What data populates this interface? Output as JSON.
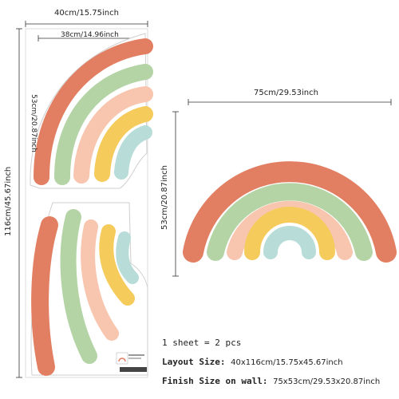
{
  "sheet": {
    "width_label": "40cm/15.75inch",
    "inner_width_label": "38cm/14.96inch",
    "height_label": "116cm/45.67inch",
    "inner_height_label": "53cm/20.87inch"
  },
  "finished": {
    "width_label": "75cm/29.53inch",
    "height_label": "53cm/20.87inch"
  },
  "info": {
    "line1": "1 sheet = 2 pcs",
    "layout_label": "Layout Size:",
    "layout_value": "40x116cm/15.75x45.67inch",
    "finish_label": "Finish Size on wall:",
    "finish_value": "75x53cm/29.53x20.87inch"
  },
  "colors": {
    "terracotta": "#E27F62",
    "sage": "#B4D4A6",
    "peach": "#F8C5AE",
    "mustard": "#F5CB5C",
    "aqua": "#B8DDD8",
    "line": "#333333"
  }
}
